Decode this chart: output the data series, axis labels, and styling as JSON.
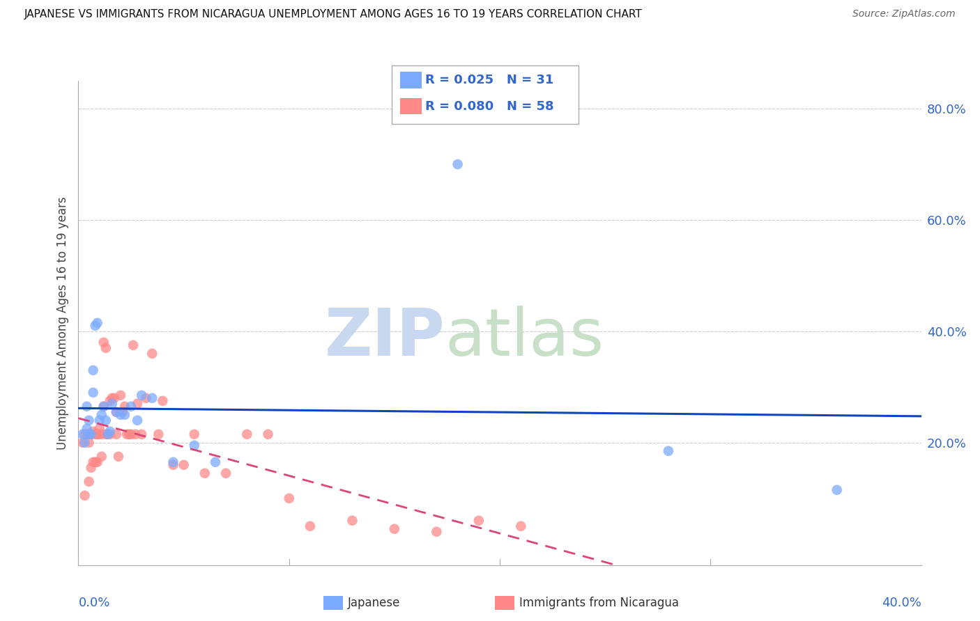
{
  "title": "JAPANESE VS IMMIGRANTS FROM NICARAGUA UNEMPLOYMENT AMONG AGES 16 TO 19 YEARS CORRELATION CHART",
  "source": "Source: ZipAtlas.com",
  "ylabel": "Unemployment Among Ages 16 to 19 years",
  "xlim": [
    0.0,
    0.4
  ],
  "ylim": [
    -0.02,
    0.85
  ],
  "yticks": [
    0.2,
    0.4,
    0.6,
    0.8
  ],
  "ytick_labels": [
    "20.0%",
    "40.0%",
    "60.0%",
    "80.0%"
  ],
  "xtick_vals": [
    0.0,
    0.1,
    0.2,
    0.3,
    0.4
  ],
  "xtick_labels": [
    "0.0%",
    "",
    "",
    "",
    "40.0%"
  ],
  "background_color": "#ffffff",
  "blue_color": "#7aaaff",
  "pink_color": "#ff8888",
  "line_blue": "#1144bb",
  "line_pink": "#dd4477",
  "legend_r1": "0.025",
  "legend_n1": "31",
  "legend_r2": "0.080",
  "legend_n2": "58",
  "japanese_x": [
    0.002,
    0.003,
    0.004,
    0.004,
    0.005,
    0.005,
    0.006,
    0.007,
    0.007,
    0.008,
    0.009,
    0.01,
    0.011,
    0.012,
    0.013,
    0.014,
    0.015,
    0.016,
    0.018,
    0.02,
    0.022,
    0.025,
    0.028,
    0.03,
    0.035,
    0.045,
    0.055,
    0.065,
    0.18,
    0.28,
    0.36
  ],
  "japanese_y": [
    0.215,
    0.2,
    0.225,
    0.265,
    0.215,
    0.24,
    0.215,
    0.29,
    0.33,
    0.41,
    0.415,
    0.24,
    0.25,
    0.265,
    0.24,
    0.215,
    0.22,
    0.27,
    0.255,
    0.25,
    0.25,
    0.265,
    0.24,
    0.285,
    0.28,
    0.165,
    0.195,
    0.165,
    0.7,
    0.185,
    0.115
  ],
  "nicaragua_x": [
    0.002,
    0.003,
    0.003,
    0.004,
    0.005,
    0.005,
    0.006,
    0.006,
    0.007,
    0.007,
    0.008,
    0.008,
    0.009,
    0.009,
    0.01,
    0.01,
    0.011,
    0.011,
    0.012,
    0.012,
    0.013,
    0.013,
    0.014,
    0.015,
    0.015,
    0.016,
    0.017,
    0.018,
    0.018,
    0.019,
    0.02,
    0.021,
    0.022,
    0.023,
    0.024,
    0.025,
    0.026,
    0.027,
    0.028,
    0.03,
    0.032,
    0.035,
    0.038,
    0.04,
    0.045,
    0.05,
    0.055,
    0.06,
    0.07,
    0.08,
    0.09,
    0.1,
    0.11,
    0.13,
    0.15,
    0.17,
    0.19,
    0.21
  ],
  "nicaragua_y": [
    0.2,
    0.105,
    0.215,
    0.215,
    0.2,
    0.13,
    0.215,
    0.155,
    0.165,
    0.22,
    0.215,
    0.165,
    0.165,
    0.215,
    0.215,
    0.225,
    0.215,
    0.175,
    0.38,
    0.265,
    0.37,
    0.215,
    0.215,
    0.275,
    0.215,
    0.28,
    0.28,
    0.255,
    0.215,
    0.175,
    0.285,
    0.255,
    0.265,
    0.215,
    0.215,
    0.215,
    0.375,
    0.215,
    0.27,
    0.215,
    0.28,
    0.36,
    0.215,
    0.275,
    0.16,
    0.16,
    0.215,
    0.145,
    0.145,
    0.215,
    0.215,
    0.1,
    0.05,
    0.06,
    0.045,
    0.04,
    0.06,
    0.05
  ]
}
